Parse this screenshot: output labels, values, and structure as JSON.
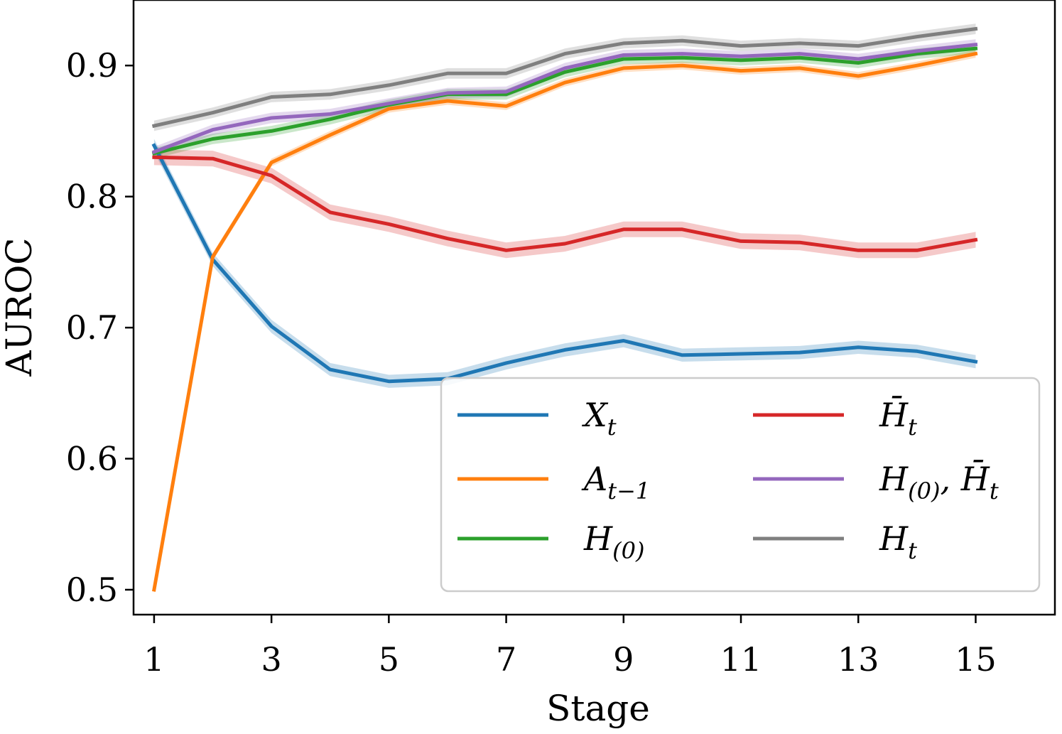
{
  "chart_data": {
    "type": "line",
    "title": "",
    "xlabel": "Stage",
    "ylabel": "AUROC",
    "xlim": [
      0.65,
      16.35
    ],
    "ylim": [
      0.481,
      0.95
    ],
    "xticks": [
      1,
      3,
      5,
      7,
      9,
      11,
      13,
      15
    ],
    "xtick_labels": [
      "1",
      "3",
      "5",
      "7",
      "9",
      "11",
      "13",
      "15"
    ],
    "yticks": [
      0.5,
      0.6,
      0.7,
      0.8,
      0.9
    ],
    "ytick_labels": [
      "0.5",
      "0.6",
      "0.7",
      "0.8",
      "0.9"
    ],
    "grid": false,
    "legend_position": "lower-right",
    "x": [
      1,
      2,
      3,
      4,
      5,
      6,
      7,
      8,
      9,
      10,
      11,
      12,
      13,
      14,
      15
    ],
    "series": [
      {
        "name": "X_t",
        "label_main": "X",
        "label_sub": "t",
        "color": "#1f77b4",
        "values": [
          0.839,
          0.752,
          0.701,
          0.668,
          0.659,
          0.661,
          0.673,
          0.683,
          0.69,
          0.679,
          0.68,
          0.681,
          0.685,
          0.682,
          0.674
        ],
        "band": 0.005
      },
      {
        "name": "A_{t-1}",
        "label_main": "A",
        "label_sub": "t−1",
        "color": "#ff7f0e",
        "values": [
          0.5,
          0.754,
          0.826,
          0.847,
          0.867,
          0.873,
          0.869,
          0.887,
          0.898,
          0.9,
          0.896,
          0.898,
          0.892,
          0.9,
          0.909
        ],
        "band": 0.003
      },
      {
        "name": "H_(0)",
        "label_main": "H",
        "label_sub": "(0)",
        "color": "#2ca02c",
        "values": [
          0.833,
          0.844,
          0.85,
          0.859,
          0.87,
          0.878,
          0.878,
          0.895,
          0.905,
          0.906,
          0.904,
          0.906,
          0.902,
          0.909,
          0.913
        ],
        "band": 0.004
      },
      {
        "name": "H̄_t",
        "label_main": "H̄",
        "label_sub": "t",
        "color": "#d62728",
        "values": [
          0.83,
          0.829,
          0.816,
          0.788,
          0.779,
          0.768,
          0.759,
          0.764,
          0.775,
          0.775,
          0.766,
          0.765,
          0.759,
          0.759,
          0.767
        ],
        "band": 0.006
      },
      {
        "name": "H_(0), H̄_t",
        "label_main": "H",
        "label_sub": "(0)",
        "label_main2": ", H̄",
        "label_sub2": "t",
        "color": "#9467bd",
        "values": [
          0.834,
          0.851,
          0.86,
          0.863,
          0.871,
          0.879,
          0.88,
          0.898,
          0.908,
          0.909,
          0.907,
          0.909,
          0.905,
          0.911,
          0.916
        ],
        "band": 0.004
      },
      {
        "name": "H_t",
        "label_main": "H",
        "label_sub": "t",
        "color": "#7f7f7f",
        "values": [
          0.854,
          0.864,
          0.876,
          0.878,
          0.885,
          0.894,
          0.894,
          0.909,
          0.917,
          0.919,
          0.915,
          0.917,
          0.915,
          0.922,
          0.928
        ],
        "band": 0.004
      }
    ]
  }
}
